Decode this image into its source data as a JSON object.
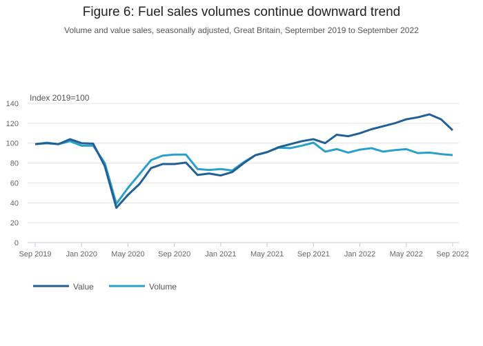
{
  "chart_data": {
    "type": "line",
    "title": "Figure 6: Fuel sales volumes continue downward trend",
    "subtitle": "Volume and value sales, seasonally adjusted, Great Britain, September 2019 to September 2022",
    "ylabel": "Index 2019=100",
    "ylim": [
      0,
      140
    ],
    "yticks": [
      0,
      20,
      40,
      60,
      80,
      100,
      120,
      140
    ],
    "xticks": [
      {
        "label": "Sep 2019",
        "i": 0
      },
      {
        "label": "Jan 2020",
        "i": 4
      },
      {
        "label": "May 2020",
        "i": 8
      },
      {
        "label": "Sep 2020",
        "i": 12
      },
      {
        "label": "Jan 2021",
        "i": 16
      },
      {
        "label": "May 2021",
        "i": 20
      },
      {
        "label": "Sep 2021",
        "i": 24
      },
      {
        "label": "Jan 2022",
        "i": 28
      },
      {
        "label": "May 2022",
        "i": 32
      },
      {
        "label": "Sep 2022",
        "i": 36
      }
    ],
    "grid": true,
    "legend": "bottom-left",
    "series": [
      {
        "name": "Value",
        "color": "#206095",
        "values": [
          99,
          100,
          99,
          104,
          100,
          99.5,
          77,
          35,
          48,
          59,
          75,
          79,
          79,
          80.5,
          68,
          69.5,
          67.5,
          71,
          80,
          88,
          91,
          96,
          99,
          102,
          104,
          100,
          108.5,
          107,
          110,
          114,
          117,
          120,
          124,
          126,
          129,
          124,
          113
        ]
      },
      {
        "name": "Volume",
        "color": "#27a0cc",
        "values": [
          99,
          100.5,
          99,
          102,
          97.5,
          97.5,
          80,
          39,
          55,
          69,
          83,
          87.5,
          88.5,
          88.5,
          74,
          73,
          74,
          72.5,
          81,
          88,
          91,
          95.5,
          95,
          97.5,
          100.5,
          91.5,
          94,
          90.5,
          93.5,
          95,
          91.5,
          93,
          94,
          90,
          90.5,
          89,
          88
        ]
      }
    ]
  }
}
